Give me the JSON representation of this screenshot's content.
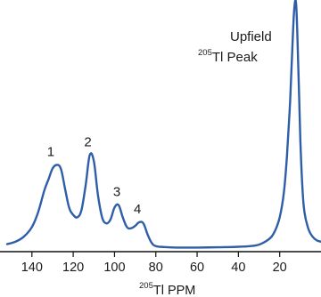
{
  "chart_data": {
    "type": "line",
    "x_axis": {
      "ticks": [
        140,
        120,
        100,
        80,
        60,
        40,
        20
      ],
      "reversed": true,
      "xlim": [
        152,
        0
      ],
      "label_prefix": "205",
      "label_main": "Tl PPM"
    },
    "y_axis": {
      "visible": false,
      "ylim": [
        0,
        1
      ]
    },
    "series": [
      {
        "color": "#2f5ea8",
        "x": [
          152,
          148,
          144,
          140,
          137,
          134,
          132,
          130,
          128,
          126,
          124,
          122,
          120,
          118,
          116,
          114,
          112,
          110,
          108,
          106,
          104,
          102,
          100,
          98,
          96,
          94,
          92,
          90,
          88,
          86,
          84,
          82,
          80,
          76,
          70,
          60,
          50,
          40,
          34,
          30,
          27,
          24,
          22,
          20,
          18,
          16.5,
          15,
          14,
          13,
          12,
          11,
          10,
          9,
          8,
          6,
          4,
          2,
          0
        ],
        "y": [
          0.02,
          0.03,
          0.05,
          0.09,
          0.15,
          0.24,
          0.285,
          0.33,
          0.345,
          0.33,
          0.25,
          0.17,
          0.14,
          0.13,
          0.16,
          0.26,
          0.385,
          0.36,
          0.22,
          0.13,
          0.105,
          0.12,
          0.17,
          0.18,
          0.13,
          0.09,
          0.085,
          0.095,
          0.11,
          0.105,
          0.06,
          0.025,
          0.012,
          0.008,
          0.006,
          0.006,
          0.007,
          0.009,
          0.012,
          0.018,
          0.03,
          0.05,
          0.08,
          0.13,
          0.23,
          0.38,
          0.6,
          0.8,
          0.98,
          1.0,
          0.75,
          0.45,
          0.25,
          0.15,
          0.08,
          0.05,
          0.035,
          0.03
        ]
      }
    ],
    "annotations": [
      {
        "text": "1",
        "x": 130,
        "y": 0.345
      },
      {
        "text": "2",
        "x": 112,
        "y": 0.385
      },
      {
        "text": "3",
        "x": 98,
        "y": 0.18
      },
      {
        "text": "4",
        "x": 88,
        "y": 0.11
      }
    ],
    "peak_label": {
      "line1": "Upfield",
      "superscript": "205",
      "line2": "Tl Peak"
    },
    "grid": false
  }
}
